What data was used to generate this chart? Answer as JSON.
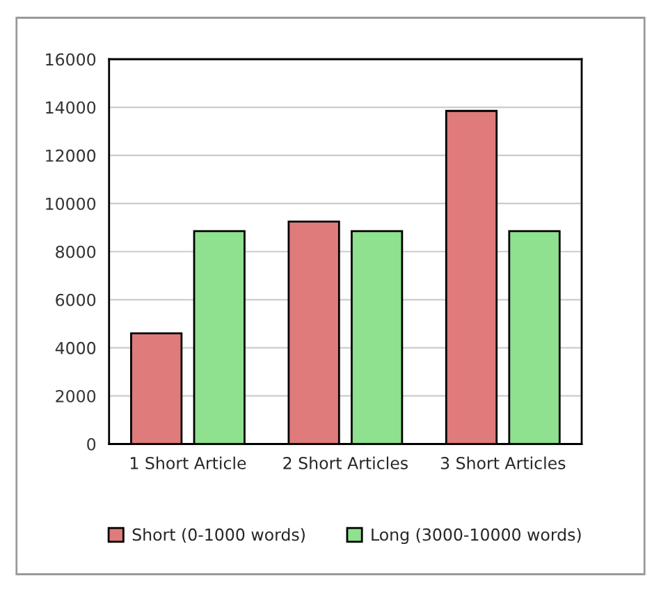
{
  "chart_data": {
    "type": "bar",
    "categories": [
      "1 Short Article",
      "2 Short Articles",
      "3 Short Articles"
    ],
    "series": [
      {
        "name": "Short (0-1000 words)",
        "color": "#e07b7b",
        "values": [
          4600,
          9250,
          13850
        ]
      },
      {
        "name": "Long (3000-10000 words)",
        "color": "#8fe08f",
        "values": [
          8850,
          8850,
          8850
        ]
      }
    ],
    "ylim": [
      0,
      16000
    ],
    "yticks": [
      0,
      2000,
      4000,
      6000,
      8000,
      10000,
      12000,
      14000,
      16000
    ],
    "grid": "y",
    "legend": "bottom"
  }
}
